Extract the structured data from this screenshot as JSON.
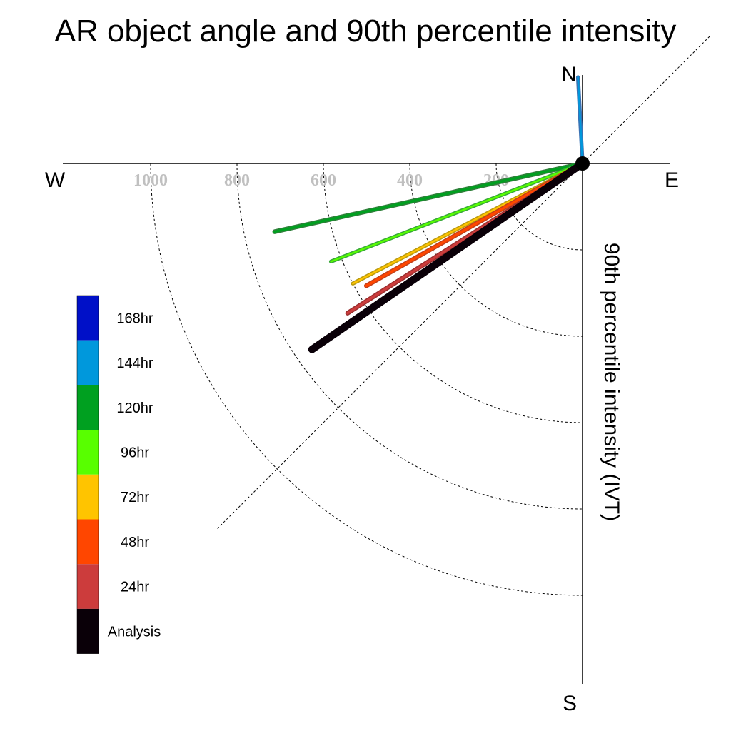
{
  "chart_data": {
    "type": "polar_vector",
    "title": "AR object angle and 90th percentile intensity",
    "ylabel": "90th percentile intensity (IVT)",
    "compass": {
      "n": "N",
      "e": "E",
      "s": "S",
      "w": "W"
    },
    "radial_ticks": [
      {
        "value": 200,
        "label": "200"
      },
      {
        "value": 400,
        "label": "400"
      },
      {
        "value": 600,
        "label": "600"
      },
      {
        "value": 800,
        "label": "800"
      },
      {
        "value": 1000,
        "label": "1000"
      }
    ],
    "r_max": 1200,
    "legend": [
      {
        "label": "168hr",
        "color": "#0010c8"
      },
      {
        "label": "144hr",
        "color": "#0098dc"
      },
      {
        "label": "120hr",
        "color": "#00a020"
      },
      {
        "label": "96hr",
        "color": "#58ff00"
      },
      {
        "label": "72hr",
        "color": "#ffc400"
      },
      {
        "label": "48hr",
        "color": "#ff4600"
      },
      {
        "label": "24hr",
        "color": "#cc3c3c"
      },
      {
        "label": "Analysis",
        "color": "#0a0008"
      }
    ],
    "series": [
      {
        "name": "144hr",
        "color": "#0098dc",
        "edge": "#3a72b4",
        "angle_deg_from_north": -3,
        "intensity": 200,
        "width": 4
      },
      {
        "name": "120hr",
        "color": "#00a020",
        "edge": "#2f7f3a",
        "angle_deg_from_north": -102.5,
        "intensity": 730,
        "width": 5
      },
      {
        "name": "96hr",
        "color": "#58ff00",
        "edge": "#38a838",
        "angle_deg_from_north": -111.3,
        "intensity": 625,
        "width": 4
      },
      {
        "name": "72hr",
        "color": "#ffc400",
        "edge": "#b89a10",
        "angle_deg_from_north": -117.6,
        "intensity": 600,
        "width": 4
      },
      {
        "name": "48hr",
        "color": "#ff4600",
        "edge": "#c0401a",
        "angle_deg_from_north": -119.5,
        "intensity": 575,
        "width": 5
      },
      {
        "name": "24hr",
        "color": "#cc3c3c",
        "edge": "#9a3030",
        "angle_deg_from_north": -122.5,
        "intensity": 645,
        "width": 5
      },
      {
        "name": "Analysis",
        "color": "#0a0008",
        "edge": "#0a0008",
        "angle_deg_from_north": -124.5,
        "intensity": 760,
        "width": 9
      }
    ]
  }
}
